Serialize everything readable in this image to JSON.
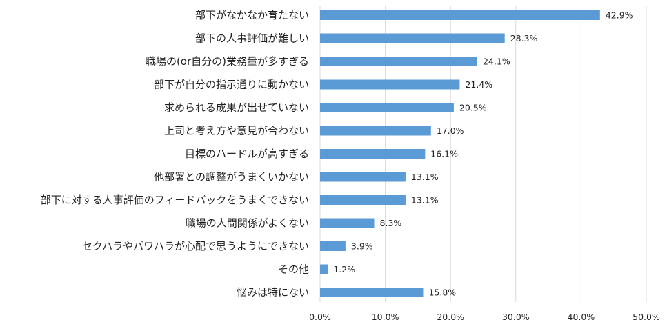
{
  "chart_data": {
    "type": "bar",
    "orientation": "horizontal",
    "categories": [
      "部下がなかなか育たない",
      "部下の人事評価が難しい",
      "職場の(or自分の)業務量が多すぎる",
      "部下が自分の指示通りに動かない",
      "求められる成果が出せていない",
      "上司と考え方や意見が合わない",
      "目標のハードルが高すぎる",
      "他部署との調整がうまくいかない",
      "部下に対する人事評価のフィードバックをうまくできない",
      "職場の人間関係がよくない",
      "セクハラやパワハラが心配で思うようにできない",
      "その他",
      "悩みは特にない"
    ],
    "values": [
      42.9,
      28.3,
      24.1,
      21.4,
      20.5,
      17.0,
      16.1,
      13.1,
      13.1,
      8.3,
      3.9,
      1.2,
      15.8
    ],
    "value_labels": [
      "42.9%",
      "28.3%",
      "24.1%",
      "21.4%",
      "20.5%",
      "17.0%",
      "16.1%",
      "13.1%",
      "13.1%",
      "8.3%",
      "3.9%",
      "1.2%",
      "15.8%"
    ],
    "xlim": [
      0,
      50
    ],
    "x_ticks": [
      0,
      10,
      20,
      30,
      40,
      50
    ],
    "x_tick_labels": [
      "0.0%",
      "10.0%",
      "20.0%",
      "30.0%",
      "40.0%",
      "50.0%"
    ],
    "grid": true,
    "legend": "none",
    "title": "",
    "xlabel": "",
    "ylabel": "",
    "colors": {
      "bar": "#5b9bd5",
      "grid": "#d9d9d9",
      "text": "#222222"
    }
  }
}
